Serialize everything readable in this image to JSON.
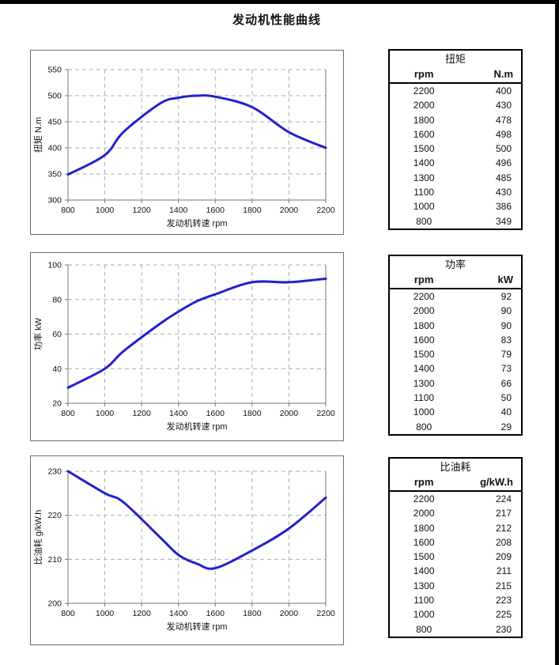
{
  "page": {
    "title": "发动机性能曲线"
  },
  "colors": {
    "curve": "#2222cc",
    "grid": "#adadad",
    "axis": "#777777",
    "table_border": "#000000"
  },
  "chart_data": [
    {
      "type": "line",
      "title": "",
      "xlabel": "发动机转速 rpm",
      "ylabel": "扭矩 N.m",
      "x": [
        800,
        1000,
        1100,
        1300,
        1400,
        1500,
        1600,
        1800,
        2000,
        2200
      ],
      "y": [
        349,
        386,
        430,
        485,
        496,
        500,
        498,
        478,
        430,
        400
      ],
      "xlim": [
        800,
        2200
      ],
      "ylim": [
        300,
        550
      ],
      "xticks": [
        800,
        1000,
        1200,
        1400,
        1600,
        1800,
        2000,
        2200
      ],
      "yticks": [
        300,
        350,
        400,
        450,
        500,
        550
      ],
      "grid": true,
      "legend": "none",
      "line_color": "#2222cc"
    },
    {
      "type": "line",
      "title": "",
      "xlabel": "发动机转速 rpm",
      "ylabel": "功率 kW",
      "x": [
        800,
        1000,
        1100,
        1300,
        1400,
        1500,
        1600,
        1800,
        2000,
        2200
      ],
      "y": [
        29,
        40,
        50,
        66,
        73,
        79,
        83,
        90,
        90,
        92
      ],
      "xlim": [
        800,
        2200
      ],
      "ylim": [
        20,
        100
      ],
      "xticks": [
        800,
        1000,
        1200,
        1400,
        1600,
        1800,
        2000,
        2200
      ],
      "yticks": [
        20,
        40,
        60,
        80,
        100
      ],
      "grid": true,
      "legend": "none",
      "line_color": "#2222cc"
    },
    {
      "type": "line",
      "title": "",
      "xlabel": "发动机转速 rpm",
      "ylabel": "比油耗 g/kW.h",
      "x": [
        800,
        1000,
        1100,
        1300,
        1400,
        1500,
        1600,
        1800,
        2000,
        2200
      ],
      "y": [
        230,
        225,
        223,
        215,
        211,
        209,
        208,
        212,
        217,
        224
      ],
      "xlim": [
        800,
        2200
      ],
      "ylim": [
        200,
        230
      ],
      "xticks": [
        800,
        1000,
        1200,
        1400,
        1600,
        1800,
        2000,
        2200
      ],
      "yticks": [
        200,
        210,
        220,
        230
      ],
      "grid": true,
      "legend": "none",
      "line_color": "#2222cc"
    }
  ],
  "tables": [
    {
      "title": "扭矩",
      "col_headers": [
        "rpm",
        "N.m"
      ],
      "rows": [
        [
          "2200",
          "400"
        ],
        [
          "2000",
          "430"
        ],
        [
          "1800",
          "478"
        ],
        [
          "1600",
          "498"
        ],
        [
          "1500",
          "500"
        ],
        [
          "1400",
          "496"
        ],
        [
          "1300",
          "485"
        ],
        [
          "1100",
          "430"
        ],
        [
          "1000",
          "386"
        ],
        [
          "800",
          "349"
        ]
      ]
    },
    {
      "title": "功率",
      "col_headers": [
        "rpm",
        "kW"
      ],
      "rows": [
        [
          "2200",
          "92"
        ],
        [
          "2000",
          "90"
        ],
        [
          "1800",
          "90"
        ],
        [
          "1600",
          "83"
        ],
        [
          "1500",
          "79"
        ],
        [
          "1400",
          "73"
        ],
        [
          "1300",
          "66"
        ],
        [
          "1100",
          "50"
        ],
        [
          "1000",
          "40"
        ],
        [
          "800",
          "29"
        ]
      ]
    },
    {
      "title": "比油耗",
      "col_headers": [
        "rpm",
        "g/kW.h"
      ],
      "rows": [
        [
          "2200",
          "224"
        ],
        [
          "2000",
          "217"
        ],
        [
          "1800",
          "212"
        ],
        [
          "1600",
          "208"
        ],
        [
          "1500",
          "209"
        ],
        [
          "1400",
          "211"
        ],
        [
          "1300",
          "215"
        ],
        [
          "1100",
          "223"
        ],
        [
          "1000",
          "225"
        ],
        [
          "800",
          "230"
        ]
      ]
    }
  ]
}
